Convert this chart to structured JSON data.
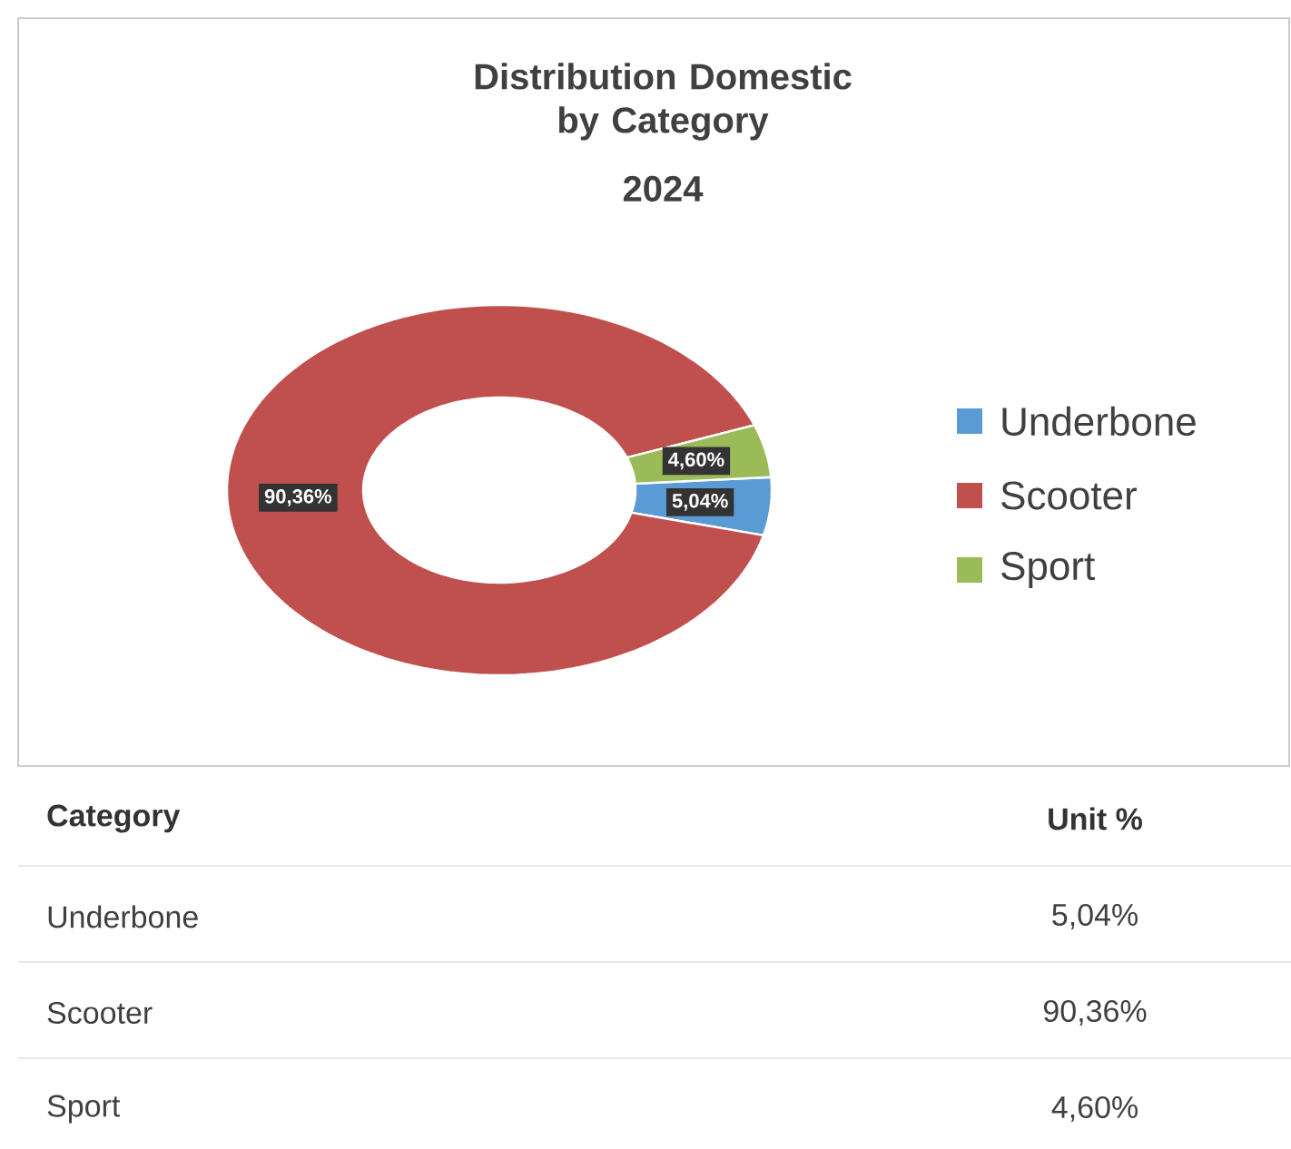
{
  "chart_data": {
    "type": "donut",
    "title": "Distribution Domestic by Category",
    "subtitle": "2024",
    "categories": [
      "Underbone",
      "Scooter",
      "Sport"
    ],
    "values": [
      5.04,
      90.36,
      4.6
    ],
    "colors": [
      "#5b9bd5",
      "#c0504d",
      "#9bbb59"
    ],
    "value_labels": [
      "5,04%",
      "90,36%",
      "4,60%"
    ],
    "legend": "right",
    "annotations": [
      "Category",
      "Unit %"
    ]
  }
}
